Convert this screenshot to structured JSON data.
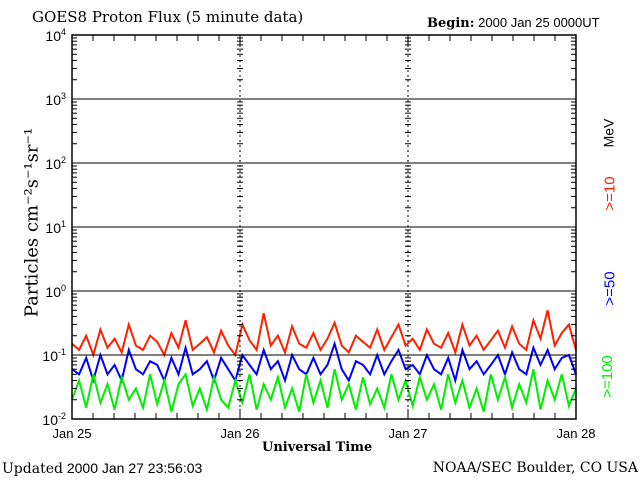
{
  "header": {
    "title": "GOES8 Proton Flux (5 minute data)",
    "begin_label": "Begin:",
    "begin_value": "2000 Jan 25 0000UT"
  },
  "footer": {
    "updated_label": "Updated",
    "updated_value": "2000 Jan 27 23:56:03",
    "source": "NOAA/SEC Boulder, CO USA"
  },
  "colors": {
    "ge10": "#ff2000",
    "ge50": "#0000ff",
    "ge100": "#00ee00",
    "axes": "#000000"
  },
  "chart_data": {
    "type": "line",
    "title": "GOES8 Proton Flux (5 minute data)",
    "xlabel": "Universal Time",
    "ylabel": "Particles cm⁻²s⁻¹sr⁻¹",
    "y_scale": "log",
    "ylim": [
      0.01,
      10000
    ],
    "y_ticks": [
      {
        "base": "10",
        "exp": "4"
      },
      {
        "base": "10",
        "exp": "3"
      },
      {
        "base": "10",
        "exp": "2"
      },
      {
        "base": "10",
        "exp": "1"
      },
      {
        "base": "10",
        "exp": "0"
      },
      {
        "base": "10",
        "exp": "-1"
      },
      {
        "base": "10",
        "exp": "-2"
      }
    ],
    "x_ticks": [
      "Jan 25",
      "Jan 26",
      "Jan 27",
      "Jan 28"
    ],
    "x_range_hours": [
      0,
      72
    ],
    "grid": "horizontal at decades, dashed vertical at day boundaries",
    "legend": {
      "position": "right",
      "unit": "MeV",
      "entries": [
        ">=10",
        ">=50",
        ">=100"
      ]
    },
    "series": [
      {
        "name": ">=10",
        "color": "#ff2000",
        "values": [
          0.15,
          0.12,
          0.2,
          0.1,
          0.25,
          0.13,
          0.18,
          0.11,
          0.3,
          0.14,
          0.12,
          0.2,
          0.16,
          0.1,
          0.22,
          0.13,
          0.35,
          0.12,
          0.15,
          0.19,
          0.11,
          0.24,
          0.14,
          0.1,
          0.3,
          0.17,
          0.12,
          0.45,
          0.14,
          0.2,
          0.11,
          0.28,
          0.15,
          0.13,
          0.22,
          0.12,
          0.18,
          0.32,
          0.14,
          0.11,
          0.2,
          0.16,
          0.13,
          0.25,
          0.12,
          0.19,
          0.3,
          0.14,
          0.18,
          0.12,
          0.25,
          0.15,
          0.13,
          0.22,
          0.11,
          0.3,
          0.14,
          0.2,
          0.12,
          0.17,
          0.24,
          0.13,
          0.28,
          0.15,
          0.12,
          0.35,
          0.18,
          0.5,
          0.14,
          0.22,
          0.3,
          0.12
        ]
      },
      {
        "name": ">=50",
        "color": "#0000ff",
        "values": [
          0.06,
          0.05,
          0.09,
          0.04,
          0.1,
          0.05,
          0.07,
          0.04,
          0.12,
          0.06,
          0.05,
          0.08,
          0.07,
          0.04,
          0.09,
          0.05,
          0.13,
          0.05,
          0.06,
          0.08,
          0.04,
          0.09,
          0.06,
          0.04,
          0.1,
          0.07,
          0.05,
          0.12,
          0.06,
          0.08,
          0.04,
          0.1,
          0.06,
          0.05,
          0.09,
          0.05,
          0.07,
          0.15,
          0.06,
          0.04,
          0.08,
          0.07,
          0.05,
          0.1,
          0.05,
          0.08,
          0.12,
          0.06,
          0.07,
          0.05,
          0.1,
          0.06,
          0.05,
          0.09,
          0.04,
          0.12,
          0.06,
          0.08,
          0.05,
          0.07,
          0.1,
          0.05,
          0.11,
          0.06,
          0.05,
          0.13,
          0.07,
          0.12,
          0.06,
          0.09,
          0.1,
          0.05
        ]
      },
      {
        "name": ">=100",
        "color": "#00ee00",
        "values": [
          0.02,
          0.04,
          0.015,
          0.05,
          0.018,
          0.035,
          0.014,
          0.045,
          0.02,
          0.03,
          0.015,
          0.05,
          0.017,
          0.04,
          0.013,
          0.035,
          0.05,
          0.016,
          0.03,
          0.014,
          0.045,
          0.02,
          0.015,
          0.04,
          0.018,
          0.05,
          0.014,
          0.035,
          0.02,
          0.045,
          0.015,
          0.03,
          0.013,
          0.05,
          0.018,
          0.04,
          0.015,
          0.06,
          0.02,
          0.035,
          0.014,
          0.045,
          0.017,
          0.03,
          0.015,
          0.05,
          0.02,
          0.04,
          0.016,
          0.045,
          0.02,
          0.035,
          0.014,
          0.05,
          0.018,
          0.04,
          0.015,
          0.03,
          0.013,
          0.05,
          0.02,
          0.045,
          0.015,
          0.035,
          0.018,
          0.06,
          0.014,
          0.04,
          0.02,
          0.05,
          0.016,
          0.03
        ]
      }
    ]
  }
}
